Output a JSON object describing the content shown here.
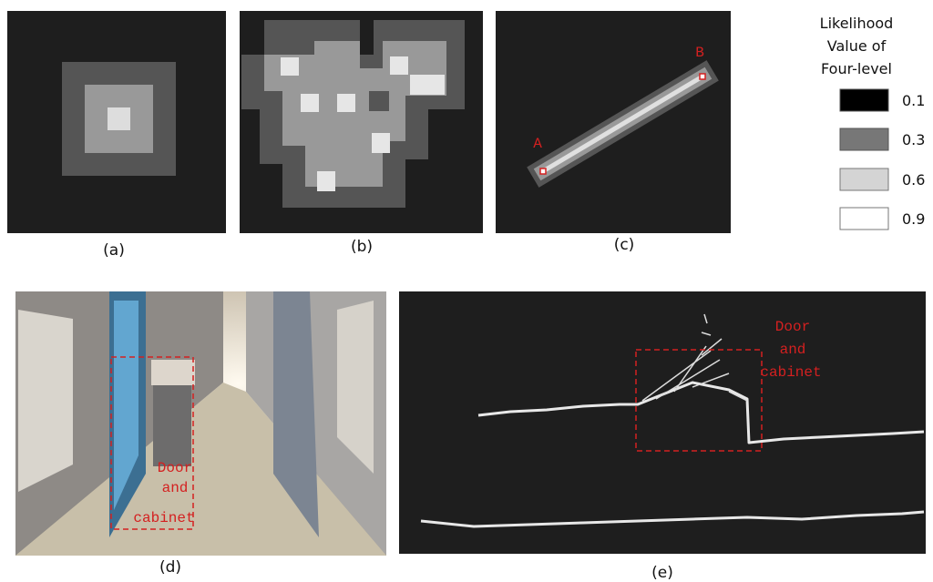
{
  "panels": [
    {
      "caption": "(a)"
    },
    {
      "caption": "(b)"
    },
    {
      "caption": "(c)",
      "points": [
        "A",
        "B"
      ]
    },
    {
      "caption": "(d)",
      "annotation": [
        "Door",
        "and",
        "cabinet"
      ]
    },
    {
      "caption": "(e)",
      "annotation": [
        "Door",
        "and",
        "cabinet"
      ]
    }
  ],
  "legend": {
    "title": [
      "Likelihood",
      "Value of",
      "Four-level"
    ],
    "levels": [
      0.1,
      0.3,
      0.6,
      0.9
    ]
  }
}
